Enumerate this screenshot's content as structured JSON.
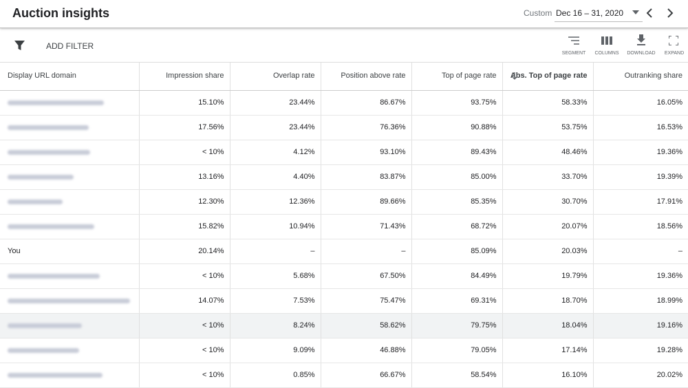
{
  "header": {
    "title": "Auction insights",
    "range_label": "Custom",
    "date_range": "Dec 16 – 31, 2020"
  },
  "toolbar": {
    "filter": "ADD FILTER",
    "actions": [
      "SEGMENT",
      "COLUMNS",
      "DOWNLOAD",
      "EXPAND"
    ]
  },
  "table": {
    "columns": [
      "Display URL domain",
      "Impression share",
      "Overlap rate",
      "Position above rate",
      "Top of page rate",
      "Abs. Top of page rate",
      "Outranking share"
    ],
    "sorted_column": 5,
    "highlighted_row": 9,
    "rows": [
      {
        "cells": [
          "15.10%",
          "23.44%",
          "86.67%",
          "93.75%",
          "58.33%",
          "16.05%"
        ]
      },
      {
        "cells": [
          "17.56%",
          "23.44%",
          "76.36%",
          "90.88%",
          "53.75%",
          "16.53%"
        ]
      },
      {
        "cells": [
          "< 10%",
          "4.12%",
          "93.10%",
          "89.43%",
          "48.46%",
          "19.36%"
        ]
      },
      {
        "cells": [
          "13.16%",
          "4.40%",
          "83.87%",
          "85.00%",
          "33.70%",
          "19.39%"
        ]
      },
      {
        "cells": [
          "12.30%",
          "12.36%",
          "89.66%",
          "85.35%",
          "30.70%",
          "17.91%"
        ]
      },
      {
        "cells": [
          "15.82%",
          "10.94%",
          "71.43%",
          "68.72%",
          "20.07%",
          "18.56%"
        ]
      },
      {
        "domain": "You",
        "cells": [
          "20.14%",
          "–",
          "–",
          "85.09%",
          "20.03%",
          "–"
        ]
      },
      {
        "cells": [
          "< 10%",
          "5.68%",
          "67.50%",
          "84.49%",
          "19.79%",
          "19.36%"
        ]
      },
      {
        "cells": [
          "14.07%",
          "7.53%",
          "75.47%",
          "69.31%",
          "18.70%",
          "18.99%"
        ]
      },
      {
        "cells": [
          "< 10%",
          "8.24%",
          "58.62%",
          "79.75%",
          "18.04%",
          "19.16%"
        ]
      },
      {
        "cells": [
          "< 10%",
          "9.09%",
          "46.88%",
          "79.05%",
          "17.14%",
          "19.28%"
        ]
      },
      {
        "cells": [
          "< 10%",
          "0.85%",
          "66.67%",
          "58.54%",
          "16.10%",
          "20.02%"
        ]
      }
    ]
  }
}
